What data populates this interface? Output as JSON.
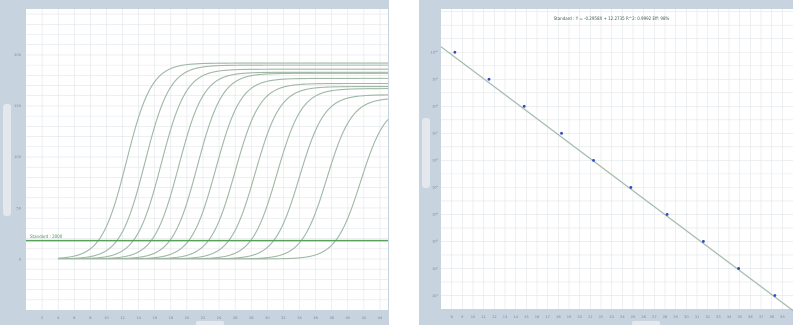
{
  "colors": {
    "frame": "#c7d3df",
    "grid": "#e1e6ea",
    "curve": "#9fb7a4",
    "threshold": "#57a05c",
    "fit_line": "#a9bdb0",
    "point": "#2a49c8"
  },
  "chart_data": [
    {
      "type": "line",
      "xlim": [
        0,
        45
      ],
      "ylim": [
        -50,
        245
      ],
      "grid": true,
      "x_ticks": [
        2,
        4,
        6,
        8,
        10,
        12,
        14,
        16,
        18,
        20,
        22,
        24,
        26,
        28,
        30,
        32,
        34,
        36,
        38,
        40,
        42,
        44
      ],
      "y_ticks": [
        0,
        50,
        100,
        150,
        200
      ],
      "y_tick_labels": [
        "0",
        "50",
        "100",
        "150",
        "200"
      ],
      "threshold": {
        "label": "Standard : 2000",
        "value": 18
      },
      "series": [
        {
          "midpoint": 12.5,
          "plateau": 192,
          "baseline": 0
        },
        {
          "midpoint": 14.8,
          "plateau": 190,
          "baseline": 0
        },
        {
          "midpoint": 16.8,
          "plateau": 186,
          "baseline": 0
        },
        {
          "midpoint": 19.0,
          "plateau": 183,
          "baseline": 0
        },
        {
          "midpoint": 21.3,
          "plateau": 182,
          "baseline": 0
        },
        {
          "midpoint": 23.6,
          "plateau": 177,
          "baseline": 0
        },
        {
          "midpoint": 26.0,
          "plateau": 172,
          "baseline": 0
        },
        {
          "midpoint": 28.5,
          "plateau": 169,
          "baseline": 0
        },
        {
          "midpoint": 31.2,
          "plateau": 167,
          "baseline": 0
        },
        {
          "midpoint": 34.0,
          "plateau": 161,
          "baseline": 0
        },
        {
          "midpoint": 37.4,
          "plateau": 158,
          "baseline": 0
        },
        {
          "midpoint": 41.6,
          "plateau": 152,
          "baseline": 0
        }
      ]
    },
    {
      "type": "scatter",
      "annotation": "Standard : Y = -0.2958X + 12.2735    R^2: 0.9992 Eff: 98%",
      "xlim": [
        7,
        40
      ],
      "ylim": [
        0.5,
        11.6
      ],
      "y_scale": "log",
      "grid": true,
      "x_ticks": [
        8,
        9,
        10,
        11,
        12,
        13,
        14,
        15,
        16,
        17,
        18,
        19,
        20,
        21,
        22,
        23,
        24,
        25,
        26,
        27,
        28,
        29,
        30,
        31,
        32,
        33,
        34,
        35,
        36,
        37,
        38,
        39
      ],
      "y_ticks": [
        1,
        2,
        3,
        4,
        5,
        6,
        7,
        8,
        9,
        10
      ],
      "y_tick_labels": [
        "10¹",
        "10²",
        "10³",
        "10⁴",
        "10⁵",
        "10⁶",
        "10⁷",
        "10⁸",
        "10⁹",
        "10¹⁰"
      ],
      "fit": {
        "slope": -0.2958,
        "intercept": 12.2735
      },
      "points": [
        {
          "x": 8.3,
          "y": 10
        },
        {
          "x": 11.5,
          "y": 9
        },
        {
          "x": 14.8,
          "y": 8
        },
        {
          "x": 18.3,
          "y": 7
        },
        {
          "x": 21.3,
          "y": 6
        },
        {
          "x": 24.8,
          "y": 5
        },
        {
          "x": 28.2,
          "y": 4
        },
        {
          "x": 31.6,
          "y": 3
        },
        {
          "x": 34.9,
          "y": 2
        },
        {
          "x": 38.3,
          "y": 1
        }
      ]
    }
  ]
}
